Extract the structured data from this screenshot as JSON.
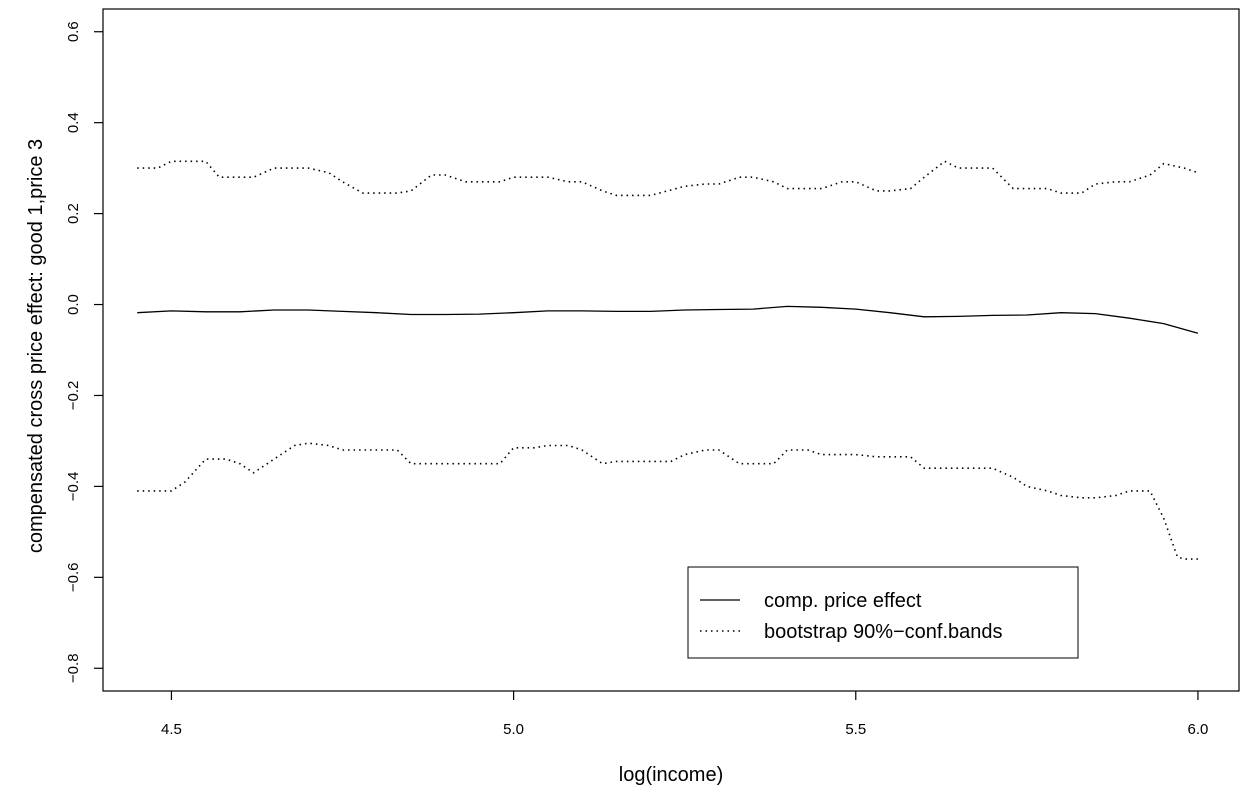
{
  "chart_data": {
    "type": "line",
    "title": "",
    "xlabel": "log(income)",
    "ylabel": "compensated cross price effect: good 1,price 3",
    "xlim": [
      4.4,
      6.06
    ],
    "ylim": [
      -0.85,
      0.65
    ],
    "xticks": [
      4.5,
      5.0,
      5.5,
      6.0
    ],
    "xtick_labels": [
      "4.5",
      "5.0",
      "5.5",
      "6.0"
    ],
    "yticks": [
      -0.8,
      -0.6,
      -0.4,
      -0.2,
      0.0,
      0.2,
      0.4,
      0.6
    ],
    "ytick_labels": [
      "−0.8",
      "−0.6",
      "−0.4",
      "−0.2",
      "0.0",
      "0.2",
      "0.4",
      "0.6"
    ],
    "grid": false,
    "legend_position": "bottom-right",
    "series": [
      {
        "name": "comp. price effect",
        "style": "solid",
        "color": "#000000",
        "x": [
          4.45,
          4.5,
          4.55,
          4.6,
          4.65,
          4.7,
          4.75,
          4.8,
          4.85,
          4.9,
          4.95,
          5.0,
          5.05,
          5.1,
          5.15,
          5.2,
          5.25,
          5.3,
          5.35,
          5.4,
          5.45,
          5.5,
          5.55,
          5.6,
          5.65,
          5.7,
          5.75,
          5.8,
          5.85,
          5.9,
          5.95,
          6.0
        ],
        "y": [
          -0.018,
          -0.014,
          -0.016,
          -0.016,
          -0.012,
          -0.012,
          -0.015,
          -0.018,
          -0.022,
          -0.022,
          -0.021,
          -0.018,
          -0.014,
          -0.014,
          -0.015,
          -0.015,
          -0.012,
          -0.011,
          -0.01,
          -0.004,
          -0.006,
          -0.01,
          -0.018,
          -0.027,
          -0.026,
          -0.024,
          -0.023,
          -0.018,
          -0.02,
          -0.03,
          -0.042,
          -0.063
        ]
      },
      {
        "name": "bootstrap 90%−conf.bands",
        "style": "dotted",
        "color": "#000000",
        "x": [
          4.45,
          4.48,
          4.5,
          4.55,
          4.57,
          4.6,
          4.62,
          4.65,
          4.7,
          4.73,
          4.75,
          4.78,
          4.8,
          4.83,
          4.85,
          4.88,
          4.9,
          4.93,
          4.95,
          4.98,
          5.0,
          5.03,
          5.05,
          5.08,
          5.1,
          5.13,
          5.15,
          5.2,
          5.25,
          5.28,
          5.3,
          5.33,
          5.35,
          5.38,
          5.4,
          5.43,
          5.45,
          5.48,
          5.5,
          5.53,
          5.55,
          5.58,
          5.6,
          5.63,
          5.65,
          5.68,
          5.7,
          5.73,
          5.75,
          5.78,
          5.8,
          5.83,
          5.85,
          5.88,
          5.9,
          5.93,
          5.95,
          5.98,
          6.0
        ],
        "y": [
          0.3,
          0.3,
          0.315,
          0.315,
          0.28,
          0.28,
          0.28,
          0.3,
          0.3,
          0.29,
          0.27,
          0.245,
          0.245,
          0.245,
          0.25,
          0.285,
          0.285,
          0.27,
          0.27,
          0.27,
          0.28,
          0.28,
          0.28,
          0.27,
          0.27,
          0.25,
          0.24,
          0.24,
          0.26,
          0.265,
          0.265,
          0.28,
          0.28,
          0.27,
          0.255,
          0.255,
          0.255,
          0.27,
          0.27,
          0.25,
          0.25,
          0.255,
          0.28,
          0.315,
          0.3,
          0.3,
          0.3,
          0.255,
          0.255,
          0.255,
          0.245,
          0.245,
          0.265,
          0.27,
          0.27,
          0.285,
          0.31,
          0.3,
          0.29
        ]
      },
      {
        "name": "",
        "style": "dotted",
        "color": "#000000",
        "x": [
          4.45,
          4.48,
          4.5,
          4.52,
          4.55,
          4.58,
          4.6,
          4.62,
          4.65,
          4.68,
          4.7,
          4.73,
          4.75,
          4.78,
          4.8,
          4.83,
          4.85,
          4.88,
          4.9,
          4.93,
          4.95,
          4.98,
          5.0,
          5.03,
          5.05,
          5.08,
          5.1,
          5.13,
          5.15,
          5.18,
          5.2,
          5.23,
          5.25,
          5.28,
          5.3,
          5.33,
          5.35,
          5.38,
          5.4,
          5.43,
          5.45,
          5.48,
          5.5,
          5.53,
          5.55,
          5.58,
          5.6,
          5.63,
          5.65,
          5.68,
          5.7,
          5.73,
          5.75,
          5.78,
          5.8,
          5.83,
          5.85,
          5.88,
          5.9,
          5.93,
          5.95,
          5.97,
          5.98,
          6.0
        ],
        "y": [
          -0.41,
          -0.41,
          -0.41,
          -0.39,
          -0.34,
          -0.34,
          -0.35,
          -0.37,
          -0.34,
          -0.31,
          -0.305,
          -0.31,
          -0.32,
          -0.32,
          -0.32,
          -0.32,
          -0.35,
          -0.35,
          -0.35,
          -0.35,
          -0.35,
          -0.35,
          -0.315,
          -0.315,
          -0.31,
          -0.31,
          -0.32,
          -0.35,
          -0.345,
          -0.345,
          -0.345,
          -0.345,
          -0.33,
          -0.32,
          -0.32,
          -0.35,
          -0.35,
          -0.35,
          -0.32,
          -0.32,
          -0.33,
          -0.33,
          -0.33,
          -0.335,
          -0.335,
          -0.335,
          -0.36,
          -0.36,
          -0.36,
          -0.36,
          -0.36,
          -0.38,
          -0.4,
          -0.41,
          -0.42,
          -0.425,
          -0.425,
          -0.42,
          -0.41,
          -0.41,
          -0.47,
          -0.555,
          -0.56,
          -0.56
        ]
      }
    ]
  }
}
